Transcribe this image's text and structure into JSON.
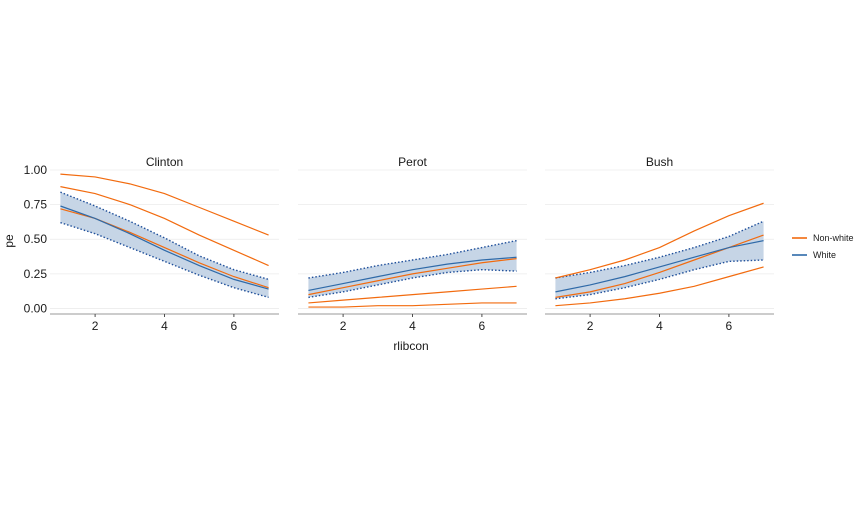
{
  "chart_data": {
    "type": "line",
    "xlabel": "rlibcon",
    "ylabel": "pe",
    "xlim": [
      0.7,
      7.3
    ],
    "ylim": [
      -0.04,
      1.0
    ],
    "x_ticks": [
      2,
      4,
      6
    ],
    "y_ticks": [
      0.0,
      0.25,
      0.5,
      0.75,
      1.0
    ],
    "y_tick_labels": [
      "0.00",
      "0.25",
      "0.50",
      "0.75",
      "1.00"
    ],
    "grid": true,
    "legend": {
      "position": "right",
      "entries": [
        {
          "label": "Non-white",
          "color": "#f26b0f"
        },
        {
          "label": "White",
          "color": "#2f6aa8"
        }
      ]
    },
    "colors": {
      "nonwhite": "#f26b0f",
      "white": "#2f6aa8",
      "white_band": "#c6d5e6",
      "white_ci_border": "#1f4f9a"
    },
    "x": [
      1,
      2,
      3,
      4,
      5,
      6,
      7
    ],
    "panels": [
      {
        "title": "Clinton",
        "nonwhite": {
          "mean": [
            0.88,
            0.83,
            0.75,
            0.65,
            0.53,
            0.42,
            0.31
          ],
          "lower": [
            0.72,
            0.65,
            0.55,
            0.44,
            0.33,
            0.23,
            0.15
          ],
          "upper": [
            0.97,
            0.95,
            0.9,
            0.83,
            0.73,
            0.63,
            0.53
          ]
        },
        "white": {
          "mean": [
            0.74,
            0.65,
            0.54,
            0.42,
            0.31,
            0.21,
            0.14
          ],
          "lower": [
            0.62,
            0.54,
            0.44,
            0.34,
            0.24,
            0.15,
            0.08
          ],
          "upper": [
            0.84,
            0.74,
            0.63,
            0.51,
            0.38,
            0.28,
            0.21
          ]
        }
      },
      {
        "title": "Perot",
        "nonwhite": {
          "mean": [
            0.04,
            0.06,
            0.08,
            0.1,
            0.12,
            0.14,
            0.16
          ],
          "lower": [
            0.01,
            0.01,
            0.02,
            0.02,
            0.03,
            0.04,
            0.04
          ],
          "upper": [
            0.1,
            0.15,
            0.2,
            0.25,
            0.29,
            0.33,
            0.36
          ]
        },
        "white": {
          "mean": [
            0.13,
            0.18,
            0.23,
            0.28,
            0.32,
            0.35,
            0.37
          ],
          "lower": [
            0.08,
            0.12,
            0.17,
            0.22,
            0.26,
            0.28,
            0.27
          ],
          "upper": [
            0.22,
            0.26,
            0.31,
            0.35,
            0.39,
            0.44,
            0.49
          ]
        }
      },
      {
        "title": "Bush",
        "nonwhite": {
          "mean": [
            0.08,
            0.12,
            0.18,
            0.26,
            0.35,
            0.44,
            0.53
          ],
          "lower": [
            0.02,
            0.04,
            0.07,
            0.11,
            0.16,
            0.23,
            0.3
          ],
          "upper": [
            0.22,
            0.28,
            0.35,
            0.44,
            0.56,
            0.67,
            0.76
          ]
        },
        "white": {
          "mean": [
            0.12,
            0.17,
            0.23,
            0.3,
            0.37,
            0.44,
            0.49
          ],
          "lower": [
            0.07,
            0.1,
            0.15,
            0.21,
            0.28,
            0.34,
            0.35
          ],
          "upper": [
            0.22,
            0.26,
            0.31,
            0.37,
            0.44,
            0.52,
            0.63
          ]
        }
      }
    ]
  }
}
